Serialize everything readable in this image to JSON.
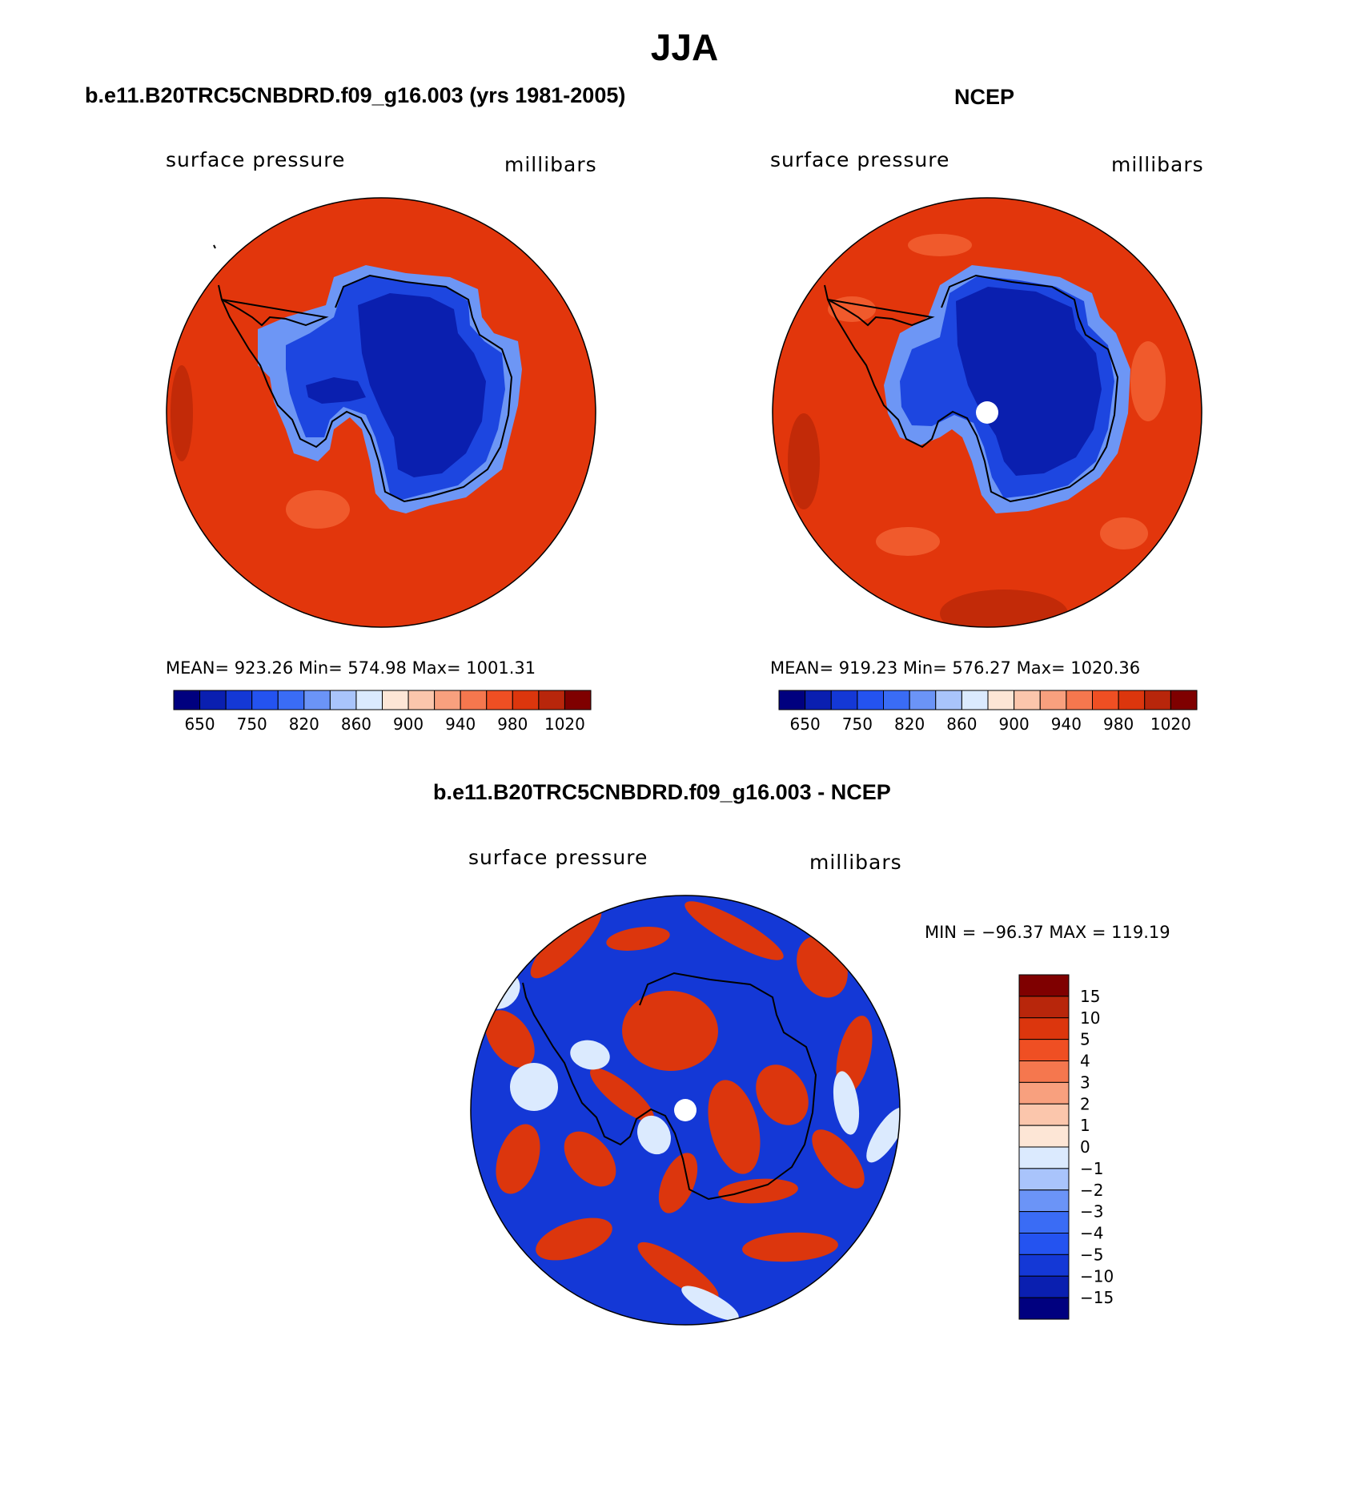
{
  "figure": {
    "title": "JJA",
    "panels": [
      {
        "title": "b.e11.B20TRC5CNBDRD.f09_g16.003 (yrs 1981-2005)",
        "variable": "surface pressure",
        "units": "millibars",
        "stats_text": "MEAN= 923.26   Min= 574.98   Max= 1001.31",
        "pole_hole": false
      },
      {
        "title": "NCEP",
        "variable": "surface pressure",
        "units": "millibars",
        "stats_text": "MEAN= 919.23   Min= 576.27   Max= 1020.36",
        "pole_hole": true
      },
      {
        "title": "b.e11.B20TRC5CNBDRD.f09_g16.003 - NCEP",
        "variable": "surface pressure",
        "units": "millibars",
        "stats_text": "MIN = −96.37 MAX = 119.19",
        "pole_hole": true
      }
    ],
    "colorbar_horizontal": {
      "colors": [
        "#00007f",
        "#0a1fb0",
        "#1438d6",
        "#2453f0",
        "#3a6cf5",
        "#6b94f7",
        "#a9c4fb",
        "#dbeafe",
        "#fde6d6",
        "#fbc6ac",
        "#f8a07e",
        "#f5774e",
        "#ef4f23",
        "#dc360d",
        "#b8260b",
        "#7f0000"
      ],
      "tick_labels": [
        "650",
        "750",
        "820",
        "860",
        "900",
        "940",
        "980",
        "1020"
      ]
    },
    "colorbar_vertical": {
      "colors": [
        "#00007f",
        "#0a1fb0",
        "#1438d6",
        "#2453f0",
        "#3a6cf5",
        "#6b94f7",
        "#a9c4fb",
        "#dbeafe",
        "#fde6d6",
        "#fbc6ac",
        "#f8a07e",
        "#f5774e",
        "#ef4f23",
        "#dc360d",
        "#b8260b",
        "#7f0000"
      ],
      "tick_labels": [
        "15",
        "10",
        "5",
        "4",
        "3",
        "2",
        "1",
        "0",
        "−1",
        "−2",
        "−3",
        "−4",
        "−5",
        "−10",
        "−15"
      ]
    },
    "map_colors": {
      "ocean": "#e2360c",
      "ocean_light": "#f05a2c",
      "ice_deep": "#0a1faf",
      "ice_mid": "#1d46e0",
      "ice_edge": "#6d96f5",
      "coast": "#000000",
      "diff_blue": "#1438d6",
      "diff_red": "#dc360d",
      "diff_pale": "#dbeafe"
    }
  }
}
